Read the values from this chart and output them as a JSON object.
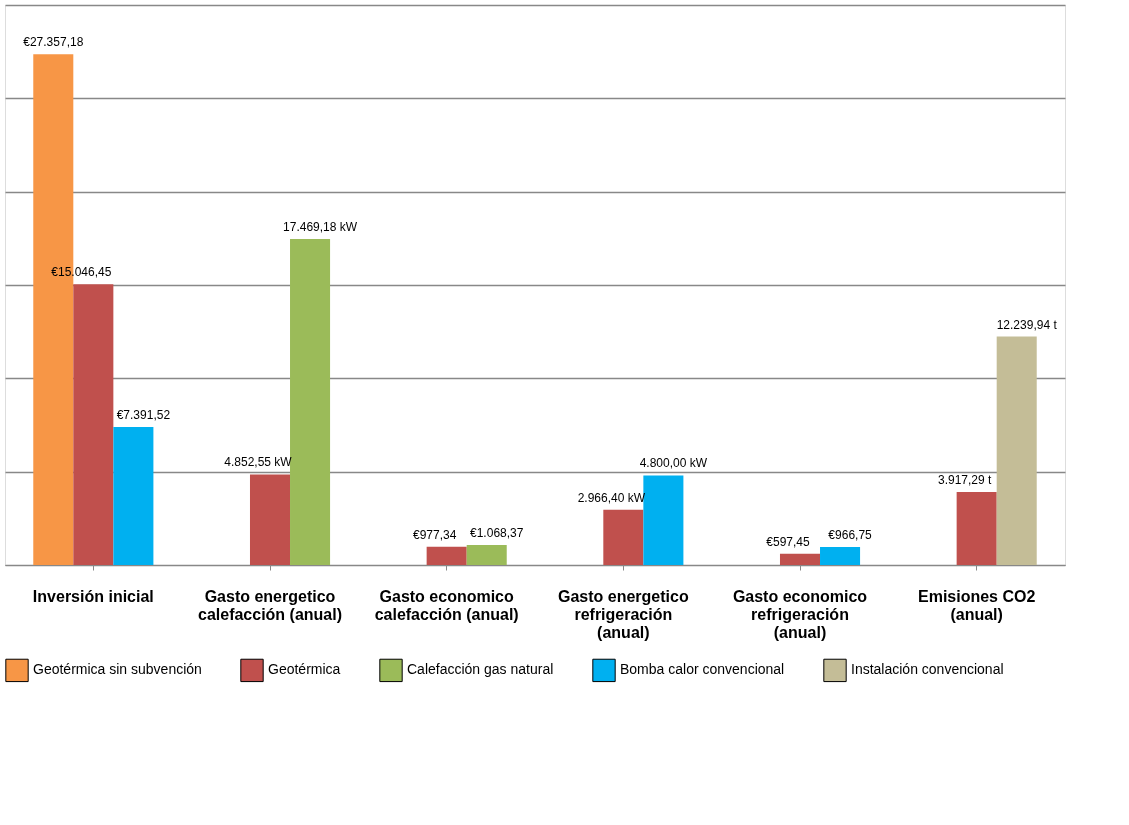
{
  "chart_data": {
    "type": "bar",
    "categories": [
      "Inversión inicial",
      "Gasto energetico calefacción (anual)",
      "Gasto economico calefacción (anual)",
      "Gasto energetico refrigeración (anual)",
      "Gasto economico refrigeración (anual)",
      "Emisiones CO2 (anual)"
    ],
    "series": [
      {
        "name": "Geotérmica sin subvención",
        "color": "#f79646",
        "values": [
          27357.18,
          null,
          null,
          null,
          null,
          null
        ],
        "value_labels": [
          "€27.357,18",
          null,
          null,
          null,
          null,
          null
        ]
      },
      {
        "name": "Geotérmica",
        "color": "#c0504d",
        "values": [
          15046.45,
          4852.55,
          977.34,
          2966.4,
          597.45,
          3917.29
        ],
        "value_labels": [
          "€15.046,45",
          "4.852,55 kW",
          "€977,34",
          "2.966,40 kW",
          "€597,45",
          "3.917,29 t"
        ]
      },
      {
        "name": "Calefacción gas natural",
        "color": "#9bbb59",
        "values": [
          null,
          17469.18,
          1068.37,
          null,
          null,
          null
        ],
        "value_labels": [
          null,
          "17.469,18 kW",
          "€1.068,37",
          null,
          null,
          null
        ]
      },
      {
        "name": "Bomba calor convencional",
        "color": "#00b0f0",
        "values": [
          7391.52,
          null,
          null,
          4800.0,
          966.75,
          null
        ],
        "value_labels": [
          "€7.391,52",
          null,
          null,
          "4.800,00 kW",
          "€966,75",
          null
        ]
      },
      {
        "name": "Instalación convencional",
        "color": "#c4bd97",
        "values": [
          null,
          null,
          null,
          null,
          null,
          12239.94
        ],
        "value_labels": [
          null,
          null,
          null,
          null,
          null,
          "12.239,94 t"
        ]
      }
    ],
    "ylim": [
      0,
      30000
    ],
    "yticks": [
      {
        "value": 0,
        "label": null
      },
      {
        "value": 5000,
        "label": null
      },
      {
        "value": 10000,
        "label": null
      },
      {
        "value": 15000,
        "label": null
      },
      {
        "value": 20000,
        "label": null
      },
      {
        "value": 25000,
        "label": null
      },
      {
        "value": 30000,
        "label": null
      }
    ],
    "grid": "y",
    "tick_labels": "x",
    "legend": "bottom"
  }
}
